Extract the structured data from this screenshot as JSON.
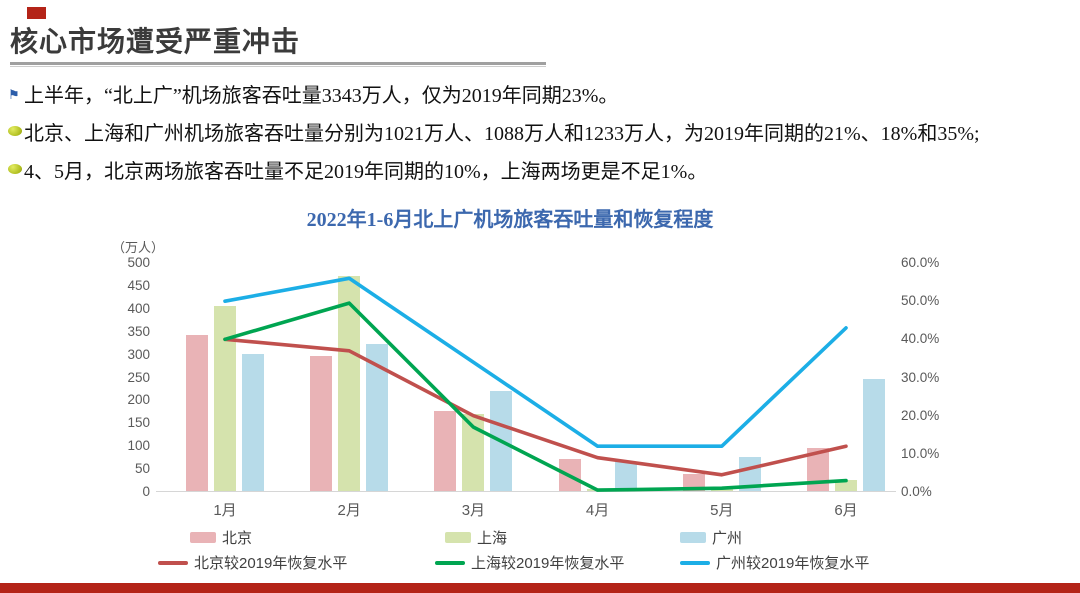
{
  "slide": {
    "title": "核心市场遭受严重冲击",
    "accent_color": "#b42418"
  },
  "bullets": [
    {
      "icon": "flag-icon",
      "text": "上半年，“北上广”机场旅客吞吐量3343万人，仅为2019年同期23%。"
    },
    {
      "icon": "dot-icon",
      "text": "北京、上海和广州机场旅客吞吐量分别为1021万人、1088万人和1233万人，为2019年同期的21%、18%和35%;"
    },
    {
      "icon": "dot-icon",
      "text": "4、5月，北京两场旅客吞吐量不足2019年同期的10%，上海两场更是不足1%。"
    }
  ],
  "chart_data": {
    "type": "combo-bar-line",
    "title": "2022年1-6月北上广机场旅客吞吐量和恢复程度",
    "unit_label": "（万人）",
    "categories": [
      "1月",
      "2月",
      "3月",
      "4月",
      "5月",
      "6月"
    ],
    "left_axis": {
      "label": "（万人）",
      "min": 0,
      "max": 500,
      "ticks": [
        0,
        50,
        100,
        150,
        200,
        250,
        300,
        350,
        400,
        450,
        500
      ]
    },
    "right_axis": {
      "min": 0,
      "max": 60,
      "ticks": [
        "0.0%",
        "10.0%",
        "20.0%",
        "30.0%",
        "40.0%",
        "50.0%",
        "60.0%"
      ]
    },
    "bar_series": [
      {
        "name": "北京",
        "color": "#e9b3b6",
        "values": [
          340,
          295,
          175,
          70,
          38,
          95
        ]
      },
      {
        "name": "上海",
        "color": "#d5e3ad",
        "values": [
          405,
          470,
          168,
          5,
          5,
          25
        ]
      },
      {
        "name": "广州",
        "color": "#b7dbe9",
        "values": [
          300,
          322,
          218,
          63,
          75,
          245
        ]
      }
    ],
    "line_series": [
      {
        "name": "北京较2019年恢复水平",
        "color": "#c0504d",
        "values": [
          40,
          37,
          20,
          9,
          4.5,
          12
        ]
      },
      {
        "name": "上海较2019年恢复水平",
        "color": "#00a551",
        "values": [
          40,
          49.5,
          17,
          0.5,
          1,
          3
        ]
      },
      {
        "name": "广州较2019年恢复水平",
        "color": "#1caee6",
        "values": [
          50,
          56,
          34,
          12,
          12,
          43
        ]
      }
    ],
    "legend_position": "bottom",
    "grid": false
  }
}
